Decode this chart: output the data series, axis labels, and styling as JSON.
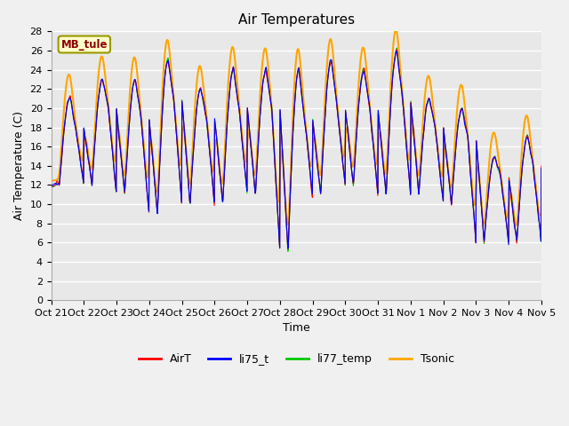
{
  "title": "Air Temperatures",
  "ylabel": "Air Temperature (C)",
  "xlabel": "Time",
  "annotation": "MB_tule",
  "legend": [
    "AirT",
    "li75_t",
    "li77_temp",
    "Tsonic"
  ],
  "colors": {
    "AirT": "#FF0000",
    "li75_t": "#0000FF",
    "li77_temp": "#00CC00",
    "Tsonic": "#FFA500"
  },
  "xtick_labels": [
    "Oct 21",
    "Oct 22",
    "Oct 23",
    "Oct 24",
    "Oct 25",
    "Oct 26",
    "Oct 27",
    "Oct 28",
    "Oct 29",
    "Oct 30",
    "Oct 31",
    "Nov 1",
    "Nov 2",
    "Nov 3",
    "Nov 4",
    "Nov 5"
  ],
  "ylim": [
    0,
    28
  ],
  "yticks": [
    0,
    2,
    4,
    6,
    8,
    10,
    12,
    14,
    16,
    18,
    20,
    22,
    24,
    26,
    28
  ],
  "bg_color": "#E8E8E8",
  "grid_color": "#FFFFFF",
  "linewidth": 0.8,
  "tsonic_linewidth": 1.5,
  "fig_facecolor": "#F0F0F0"
}
